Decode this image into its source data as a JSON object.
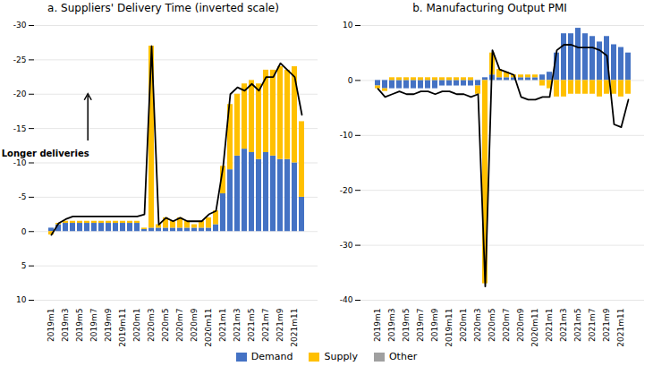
{
  "chart_data": [
    {
      "type": "bar",
      "stacked": true,
      "title": "a. Suppliers' Delivery Time (inverted scale)",
      "categories": [
        "2019m1",
        null,
        "2019m3",
        null,
        "2019m5",
        null,
        "2019m7",
        null,
        "2019m9",
        null,
        "2019m11",
        null,
        "2020m1",
        null,
        "2020m3",
        null,
        "2020m5",
        null,
        "2020m7",
        null,
        "2020m9",
        null,
        "2020m11",
        null,
        "2021m1",
        null,
        "2021m3",
        null,
        "2021m5",
        null,
        "2021m7",
        null,
        "2021m9",
        null,
        "2021m11",
        null
      ],
      "series": [
        {
          "name": "Demand",
          "color": "#4472C4",
          "values": [
            -0.5,
            -1.0,
            -1.2,
            -1.2,
            -1.2,
            -1.2,
            -1.2,
            -1.2,
            -1.2,
            -1.2,
            -1.2,
            -1.2,
            -1.2,
            -0.3,
            -0.5,
            -0.5,
            -0.5,
            -0.5,
            -0.5,
            -0.5,
            -0.5,
            -0.5,
            -0.5,
            -1.0,
            -5.5,
            -9.0,
            -11.0,
            -12.0,
            -11.5,
            -10.5,
            -11.5,
            -11.0,
            -10.5,
            -10.5,
            -10.0,
            -5.0
          ]
        },
        {
          "name": "Supply",
          "color": "#FFC000",
          "values": [
            0.5,
            -0.2,
            -0.3,
            -0.3,
            -0.3,
            -0.3,
            -0.3,
            -0.3,
            -0.3,
            -0.3,
            -0.3,
            -0.3,
            -0.3,
            -0.2,
            -26.5,
            -0.5,
            -1.5,
            -1.0,
            -1.5,
            -1.0,
            -0.5,
            -1.0,
            -1.5,
            -2.0,
            -4.0,
            -9.5,
            -9.0,
            -9.5,
            -10.5,
            -11.0,
            -12.0,
            -12.5,
            -13.5,
            -13.0,
            -14.0,
            -11.0
          ]
        },
        {
          "name": "Other",
          "color": "#A0A0A0",
          "values": [
            0.0,
            0.0,
            0.0,
            0.0,
            0.0,
            0.0,
            0.0,
            0.0,
            0.0,
            0.0,
            0.0,
            0.0,
            0.0,
            0.0,
            0.0,
            0.0,
            0.0,
            0.0,
            0.0,
            0.0,
            0.0,
            0.0,
            0.0,
            0.0,
            0.0,
            0.0,
            0.0,
            0.0,
            0.0,
            0.0,
            0.0,
            0.0,
            0.0,
            0.0,
            0.0,
            0.0
          ]
        },
        {
          "type": "line",
          "color": "#000000",
          "values": [
            0.5,
            -1.2,
            -1.8,
            -2.2,
            -2.2,
            -2.2,
            -2.2,
            -2.2,
            -2.2,
            -2.2,
            -2.2,
            -2.2,
            -2.2,
            -2.5,
            -27.0,
            -1.0,
            -2.0,
            -1.5,
            -2.0,
            -1.5,
            -1.5,
            -1.5,
            -2.5,
            -3.0,
            -9.5,
            -20.0,
            -21.0,
            -20.5,
            -21.5,
            -20.5,
            -22.5,
            -22.5,
            -24.5,
            -23.5,
            -22.5,
            -17.0
          ]
        }
      ],
      "ylim": [
        10,
        -30
      ],
      "yticks": [
        10,
        5,
        0,
        -5,
        -10,
        -15,
        -20,
        -25,
        -30
      ],
      "grid": true,
      "legend": "bottom",
      "annotation": "Longer deliveries"
    },
    {
      "type": "bar",
      "stacked": true,
      "title": "b. Manufacturing Output PMI",
      "categories": [
        "2019m1",
        null,
        "2019m3",
        null,
        "2019m5",
        null,
        "2019m7",
        null,
        "2019m9",
        null,
        "2019m11",
        null,
        "2020m1",
        null,
        "2020m3",
        null,
        "2020m5",
        null,
        "2020m7",
        null,
        "2020m9",
        null,
        "2020m11",
        null,
        "2021m1",
        null,
        "2021m3",
        null,
        "2021m5",
        null,
        "2021m7",
        null,
        "2021m9",
        null,
        "2021m11",
        null
      ],
      "series": [
        {
          "name": "Demand",
          "color": "#4472C4",
          "values": [
            -1.0,
            -1.5,
            -1.5,
            -1.5,
            -1.5,
            -1.5,
            -1.5,
            -1.5,
            -1.5,
            -1.0,
            -1.0,
            -1.0,
            -1.0,
            -1.0,
            -1.0,
            0.5,
            1.0,
            0.5,
            0.5,
            0.5,
            0.5,
            0.5,
            0.5,
            1.0,
            1.5,
            5.0,
            8.5,
            8.5,
            9.5,
            8.5,
            8.0,
            7.0,
            8.0,
            6.5,
            6.0,
            5.0
          ]
        },
        {
          "name": "Supply",
          "color": "#FFC000",
          "values": [
            -0.5,
            -0.5,
            0.5,
            0.5,
            0.5,
            0.5,
            0.5,
            0.5,
            0.5,
            0.5,
            0.5,
            0.5,
            0.5,
            0.5,
            -1.5,
            -37.0,
            4.0,
            1.5,
            1.0,
            0.5,
            0.5,
            0.5,
            0.5,
            -1.0,
            -1.5,
            -3.0,
            -3.0,
            -2.5,
            -2.5,
            -2.5,
            -2.5,
            -3.0,
            -2.5,
            -2.5,
            -3.0,
            -2.5
          ]
        },
        {
          "name": "Other",
          "color": "#A0A0A0",
          "values": [
            0.0,
            0.0,
            0.0,
            0.0,
            0.0,
            0.0,
            0.0,
            0.0,
            0.0,
            0.0,
            0.0,
            0.0,
            0.0,
            0.0,
            0.0,
            0.0,
            0.0,
            0.0,
            0.0,
            0.0,
            0.0,
            0.0,
            0.0,
            0.0,
            0.0,
            0.0,
            0.0,
            0.0,
            0.0,
            0.0,
            0.0,
            0.0,
            0.0,
            0.0,
            0.0,
            0.0
          ]
        },
        {
          "type": "line",
          "color": "#000000",
          "values": [
            -1.5,
            -3.0,
            -2.5,
            -2.0,
            -2.5,
            -2.5,
            -2.0,
            -2.0,
            -2.5,
            -2.0,
            -2.0,
            -2.5,
            -2.5,
            -3.0,
            -2.5,
            -37.5,
            5.5,
            2.0,
            1.5,
            1.0,
            -3.0,
            -3.5,
            -3.5,
            -3.0,
            -3.0,
            5.5,
            6.5,
            6.5,
            6.0,
            6.0,
            6.0,
            5.5,
            4.5,
            -8.0,
            -8.5,
            -3.5
          ]
        }
      ],
      "ylim": [
        -40,
        10
      ],
      "yticks": [
        -40,
        -30,
        -20,
        -10,
        0,
        10
      ],
      "grid": true,
      "legend": "bottom"
    }
  ]
}
